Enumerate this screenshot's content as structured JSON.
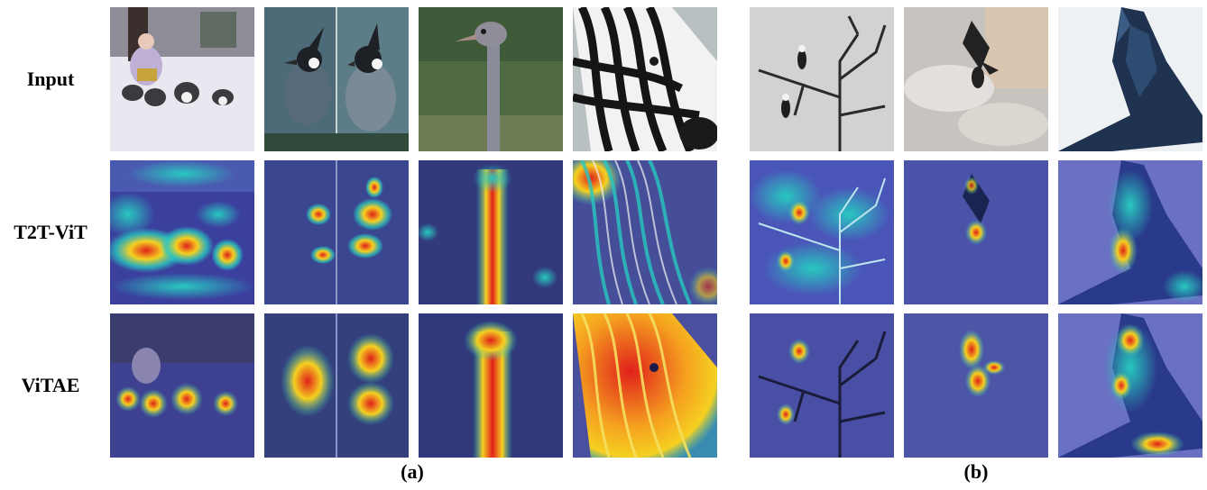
{
  "row_labels": {
    "input": "Input",
    "t2t": "T2T-ViT",
    "vitae": "ViTAE"
  },
  "panel_labels": {
    "a": "(a)",
    "b": "(b)"
  },
  "columns": [
    {
      "subject": "sled-dogs-icon"
    },
    {
      "subject": "crested-bird-icon"
    },
    {
      "subject": "ostrich-icon"
    },
    {
      "subject": "zebra-icon"
    },
    {
      "subject": "eagles-on-branches-icon"
    },
    {
      "subject": "flying-eagle-icon"
    },
    {
      "subject": "eagle-closeup-icon"
    }
  ],
  "colors": {
    "heat_base": "#3b3f9e",
    "heat_hot": "#e0201a",
    "heat_warm": "#f5d020",
    "heat_cool": "#28c8c0"
  }
}
